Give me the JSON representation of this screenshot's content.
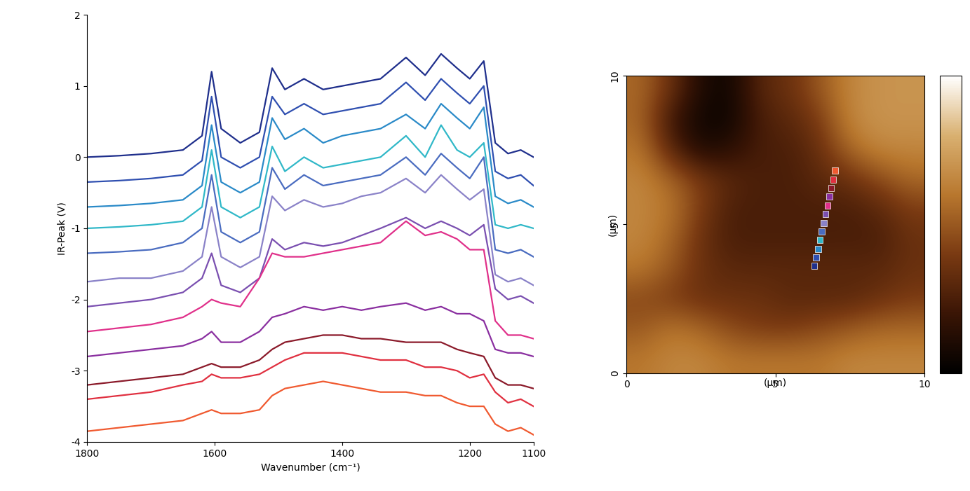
{
  "chart_data": [
    {
      "type": "line",
      "xlabel": "Wavenumber (cm⁻¹)",
      "ylabel": "IR-Peak (V)",
      "xlim": [
        1800,
        1100
      ],
      "ylim": [
        -4,
        2
      ],
      "xticks": [
        1800,
        1600,
        1400,
        1200,
        1100
      ],
      "yticks": [
        -4,
        -3,
        -2,
        -1,
        0,
        1,
        2
      ],
      "x": [
        1800,
        1750,
        1700,
        1650,
        1620,
        1605,
        1590,
        1560,
        1530,
        1510,
        1490,
        1460,
        1430,
        1400,
        1370,
        1340,
        1300,
        1270,
        1245,
        1220,
        1200,
        1178,
        1160,
        1140,
        1120,
        1100
      ],
      "series": [
        {
          "color": "#1f2f8c",
          "values": [
            0,
            0.02,
            0.05,
            0.1,
            0.3,
            1.2,
            0.4,
            0.2,
            0.35,
            1.25,
            0.95,
            1.1,
            0.95,
            1.0,
            1.05,
            1.1,
            1.4,
            1.15,
            1.45,
            1.25,
            1.1,
            1.35,
            0.2,
            0.05,
            0.1,
            0.0
          ]
        },
        {
          "color": "#2f4fb0",
          "values": [
            -0.35,
            -0.33,
            -0.3,
            -0.25,
            -0.05,
            0.85,
            0.0,
            -0.15,
            0.0,
            0.85,
            0.6,
            0.75,
            0.6,
            0.65,
            0.7,
            0.75,
            1.05,
            0.8,
            1.1,
            0.9,
            0.75,
            1.0,
            -0.2,
            -0.3,
            -0.25,
            -0.4
          ]
        },
        {
          "color": "#2a8ac8",
          "values": [
            -0.7,
            -0.68,
            -0.65,
            -0.6,
            -0.4,
            0.45,
            -0.35,
            -0.5,
            -0.35,
            0.55,
            0.25,
            0.4,
            0.2,
            0.3,
            0.35,
            0.4,
            0.6,
            0.4,
            0.75,
            0.55,
            0.4,
            0.7,
            -0.55,
            -0.65,
            -0.6,
            -0.7
          ]
        },
        {
          "color": "#30b8c8",
          "values": [
            -1.0,
            -0.98,
            -0.95,
            -0.9,
            -0.7,
            0.1,
            -0.7,
            -0.85,
            -0.7,
            0.15,
            -0.2,
            0.0,
            -0.15,
            -0.1,
            -0.05,
            0.0,
            0.3,
            0.0,
            0.45,
            0.1,
            0.0,
            0.2,
            -0.95,
            -1.0,
            -0.95,
            -1.0
          ]
        },
        {
          "color": "#4a6cc0",
          "values": [
            -1.35,
            -1.33,
            -1.3,
            -1.2,
            -1.0,
            -0.25,
            -1.05,
            -1.2,
            -1.05,
            -0.15,
            -0.45,
            -0.25,
            -0.4,
            -0.35,
            -0.3,
            -0.25,
            0.0,
            -0.25,
            0.05,
            -0.15,
            -0.3,
            0.0,
            -1.3,
            -1.35,
            -1.3,
            -1.4
          ]
        },
        {
          "color": "#8a82c8",
          "values": [
            -1.75,
            -1.7,
            -1.7,
            -1.6,
            -1.4,
            -0.7,
            -1.4,
            -1.55,
            -1.4,
            -0.55,
            -0.75,
            -0.6,
            -0.7,
            -0.65,
            -0.55,
            -0.5,
            -0.3,
            -0.5,
            -0.25,
            -0.45,
            -0.6,
            -0.45,
            -1.65,
            -1.75,
            -1.7,
            -1.8
          ]
        },
        {
          "color": "#7a4fb0",
          "values": [
            -2.1,
            -2.05,
            -2.0,
            -1.9,
            -1.7,
            -1.35,
            -1.8,
            -1.9,
            -1.7,
            -1.15,
            -1.3,
            -1.2,
            -1.25,
            -1.2,
            -1.1,
            -1.0,
            -0.85,
            -1.0,
            -0.9,
            -1.0,
            -1.1,
            -0.95,
            -1.85,
            -2.0,
            -1.95,
            -2.05
          ]
        },
        {
          "color": "#e0308a",
          "values": [
            -2.45,
            -2.4,
            -2.35,
            -2.25,
            -2.1,
            -2.0,
            -2.05,
            -2.1,
            -1.7,
            -1.35,
            -1.4,
            -1.4,
            -1.35,
            -1.3,
            -1.25,
            -1.2,
            -0.9,
            -1.1,
            -1.05,
            -1.15,
            -1.3,
            -1.3,
            -2.3,
            -2.5,
            -2.5,
            -2.55
          ]
        },
        {
          "color": "#8a2fa0",
          "values": [
            -2.8,
            -2.75,
            -2.7,
            -2.65,
            -2.55,
            -2.45,
            -2.6,
            -2.6,
            -2.45,
            -2.25,
            -2.2,
            -2.1,
            -2.15,
            -2.1,
            -2.15,
            -2.1,
            -2.05,
            -2.15,
            -2.1,
            -2.2,
            -2.2,
            -2.3,
            -2.7,
            -2.75,
            -2.75,
            -2.8
          ]
        },
        {
          "color": "#8b1a2a",
          "values": [
            -3.2,
            -3.15,
            -3.1,
            -3.05,
            -2.95,
            -2.9,
            -2.95,
            -2.95,
            -2.85,
            -2.7,
            -2.6,
            -2.55,
            -2.5,
            -2.5,
            -2.55,
            -2.55,
            -2.6,
            -2.6,
            -2.6,
            -2.7,
            -2.75,
            -2.8,
            -3.1,
            -3.2,
            -3.2,
            -3.25
          ]
        },
        {
          "color": "#e03040",
          "values": [
            -3.4,
            -3.35,
            -3.3,
            -3.2,
            -3.15,
            -3.05,
            -3.1,
            -3.1,
            -3.05,
            -2.95,
            -2.85,
            -2.75,
            -2.75,
            -2.75,
            -2.8,
            -2.85,
            -2.85,
            -2.95,
            -2.95,
            -3.0,
            -3.1,
            -3.05,
            -3.3,
            -3.45,
            -3.4,
            -3.5
          ]
        },
        {
          "color": "#f05a30",
          "values": [
            -3.85,
            -3.8,
            -3.75,
            -3.7,
            -3.6,
            -3.55,
            -3.6,
            -3.6,
            -3.55,
            -3.35,
            -3.25,
            -3.2,
            -3.15,
            -3.2,
            -3.25,
            -3.3,
            -3.3,
            -3.35,
            -3.35,
            -3.45,
            -3.5,
            -3.5,
            -3.75,
            -3.85,
            -3.8,
            -3.9
          ]
        }
      ]
    },
    {
      "type": "heatmap",
      "xlabel": "(µm)",
      "ylabel": "(µm)",
      "xlim": [
        0,
        10
      ],
      "ylim": [
        0,
        10
      ],
      "xticks": [
        0,
        5,
        10
      ],
      "yticks": [
        0,
        5,
        10
      ],
      "cells": [
        [
          55,
          35,
          10,
          5,
          30,
          35,
          50,
          65,
          70,
          70
        ],
        [
          55,
          20,
          5,
          5,
          25,
          30,
          40,
          65,
          70,
          70
        ],
        [
          60,
          30,
          10,
          15,
          25,
          25,
          35,
          55,
          65,
          65
        ],
        [
          65,
          55,
          40,
          30,
          25,
          25,
          30,
          35,
          45,
          55
        ],
        [
          65,
          60,
          40,
          25,
          25,
          25,
          25,
          25,
          30,
          40
        ],
        [
          65,
          55,
          35,
          25,
          25,
          25,
          25,
          25,
          25,
          35
        ],
        [
          60,
          50,
          35,
          30,
          30,
          30,
          30,
          30,
          30,
          35
        ],
        [
          45,
          40,
          35,
          35,
          35,
          30,
          30,
          30,
          35,
          40
        ],
        [
          50,
          60,
          55,
          45,
          40,
          40,
          45,
          50,
          55,
          55
        ],
        [
          60,
          65,
          65,
          60,
          60,
          60,
          60,
          65,
          65,
          65
        ]
      ],
      "colorbar": {
        "range": [
          0,
          100
        ],
        "ticks": []
      },
      "scan_points": {
        "x": [
          6.3,
          6.36,
          6.43,
          6.49,
          6.55,
          6.62,
          6.68,
          6.75,
          6.81,
          6.87,
          6.94,
          7.0
        ],
        "y": [
          3.6,
          3.89,
          4.18,
          4.47,
          4.76,
          5.05,
          5.35,
          5.64,
          5.93,
          6.22,
          6.51,
          6.8
        ],
        "colors": [
          "#1f2f8c",
          "#2f4fb0",
          "#2a8ac8",
          "#30b8c8",
          "#4a6cc0",
          "#8a82c8",
          "#7a4fb0",
          "#e0308a",
          "#8a2fa0",
          "#8b1a2a",
          "#e03040",
          "#f05a30"
        ]
      }
    }
  ]
}
